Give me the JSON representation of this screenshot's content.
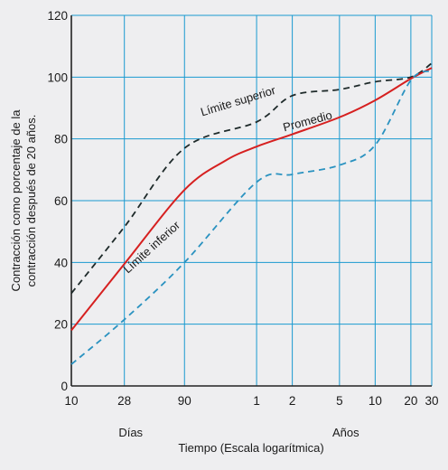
{
  "chart_data": {
    "type": "line",
    "title": "",
    "xlabel": "Tiempo (Escala logarítmica)",
    "ylabel": [
      "Contracción como porcentaje de la",
      "contracción después de 20 años."
    ],
    "x_scale": "log",
    "x_unit": "days",
    "x_ticks": [
      {
        "label": "10",
        "days": 10
      },
      {
        "label": "28",
        "days": 28
      },
      {
        "label": "90",
        "days": 90
      },
      {
        "label": "1",
        "days": 365
      },
      {
        "label": "2",
        "days": 730
      },
      {
        "label": "5",
        "days": 1825
      },
      {
        "label": "10",
        "days": 3650
      },
      {
        "label": "20",
        "days": 7300
      },
      {
        "label": "30",
        "days": 10950
      }
    ],
    "x_groups": [
      {
        "label": "Días",
        "days": 28
      },
      {
        "label": "Años",
        "days": 1825
      }
    ],
    "ylim": [
      0,
      120
    ],
    "y_ticks": [
      0,
      20,
      40,
      60,
      80,
      100,
      120
    ],
    "grid": true,
    "annotations": [
      {
        "text": "Límite superior",
        "series": "upper",
        "days": 260,
        "y": 91,
        "angle": -17
      },
      {
        "text": "Promedio",
        "series": "average",
        "days": 1000,
        "y": 84.5,
        "angle": -15
      },
      {
        "text": "Límite inferior",
        "series": "lower",
        "days": 50,
        "y": 44,
        "angle": -42
      }
    ],
    "series": [
      {
        "key": "upper",
        "color": "#1e2a2a",
        "dash": "dashed",
        "x": [
          10,
          28,
          90,
          365,
          730,
          1825,
          3650,
          7300,
          10950
        ],
        "y": [
          30,
          51.5,
          77,
          85.5,
          94,
          96,
          98.5,
          100,
          104.5
        ]
      },
      {
        "key": "average",
        "color": "#d62020",
        "dash": "solid",
        "x": [
          10,
          28,
          90,
          200,
          365,
          730,
          1825,
          3650,
          7300,
          10950
        ],
        "y": [
          18,
          39.5,
          63.5,
          73,
          77.5,
          81.5,
          87,
          92.5,
          99.5,
          103
        ]
      },
      {
        "key": "lower",
        "color": "#2a92c0",
        "dash": "dashed",
        "x": [
          10,
          28,
          90,
          365,
          730,
          1825,
          3650,
          7300,
          10950
        ],
        "y": [
          7,
          21.5,
          40,
          66,
          68.5,
          71.5,
          78,
          99,
          102
        ]
      }
    ]
  }
}
